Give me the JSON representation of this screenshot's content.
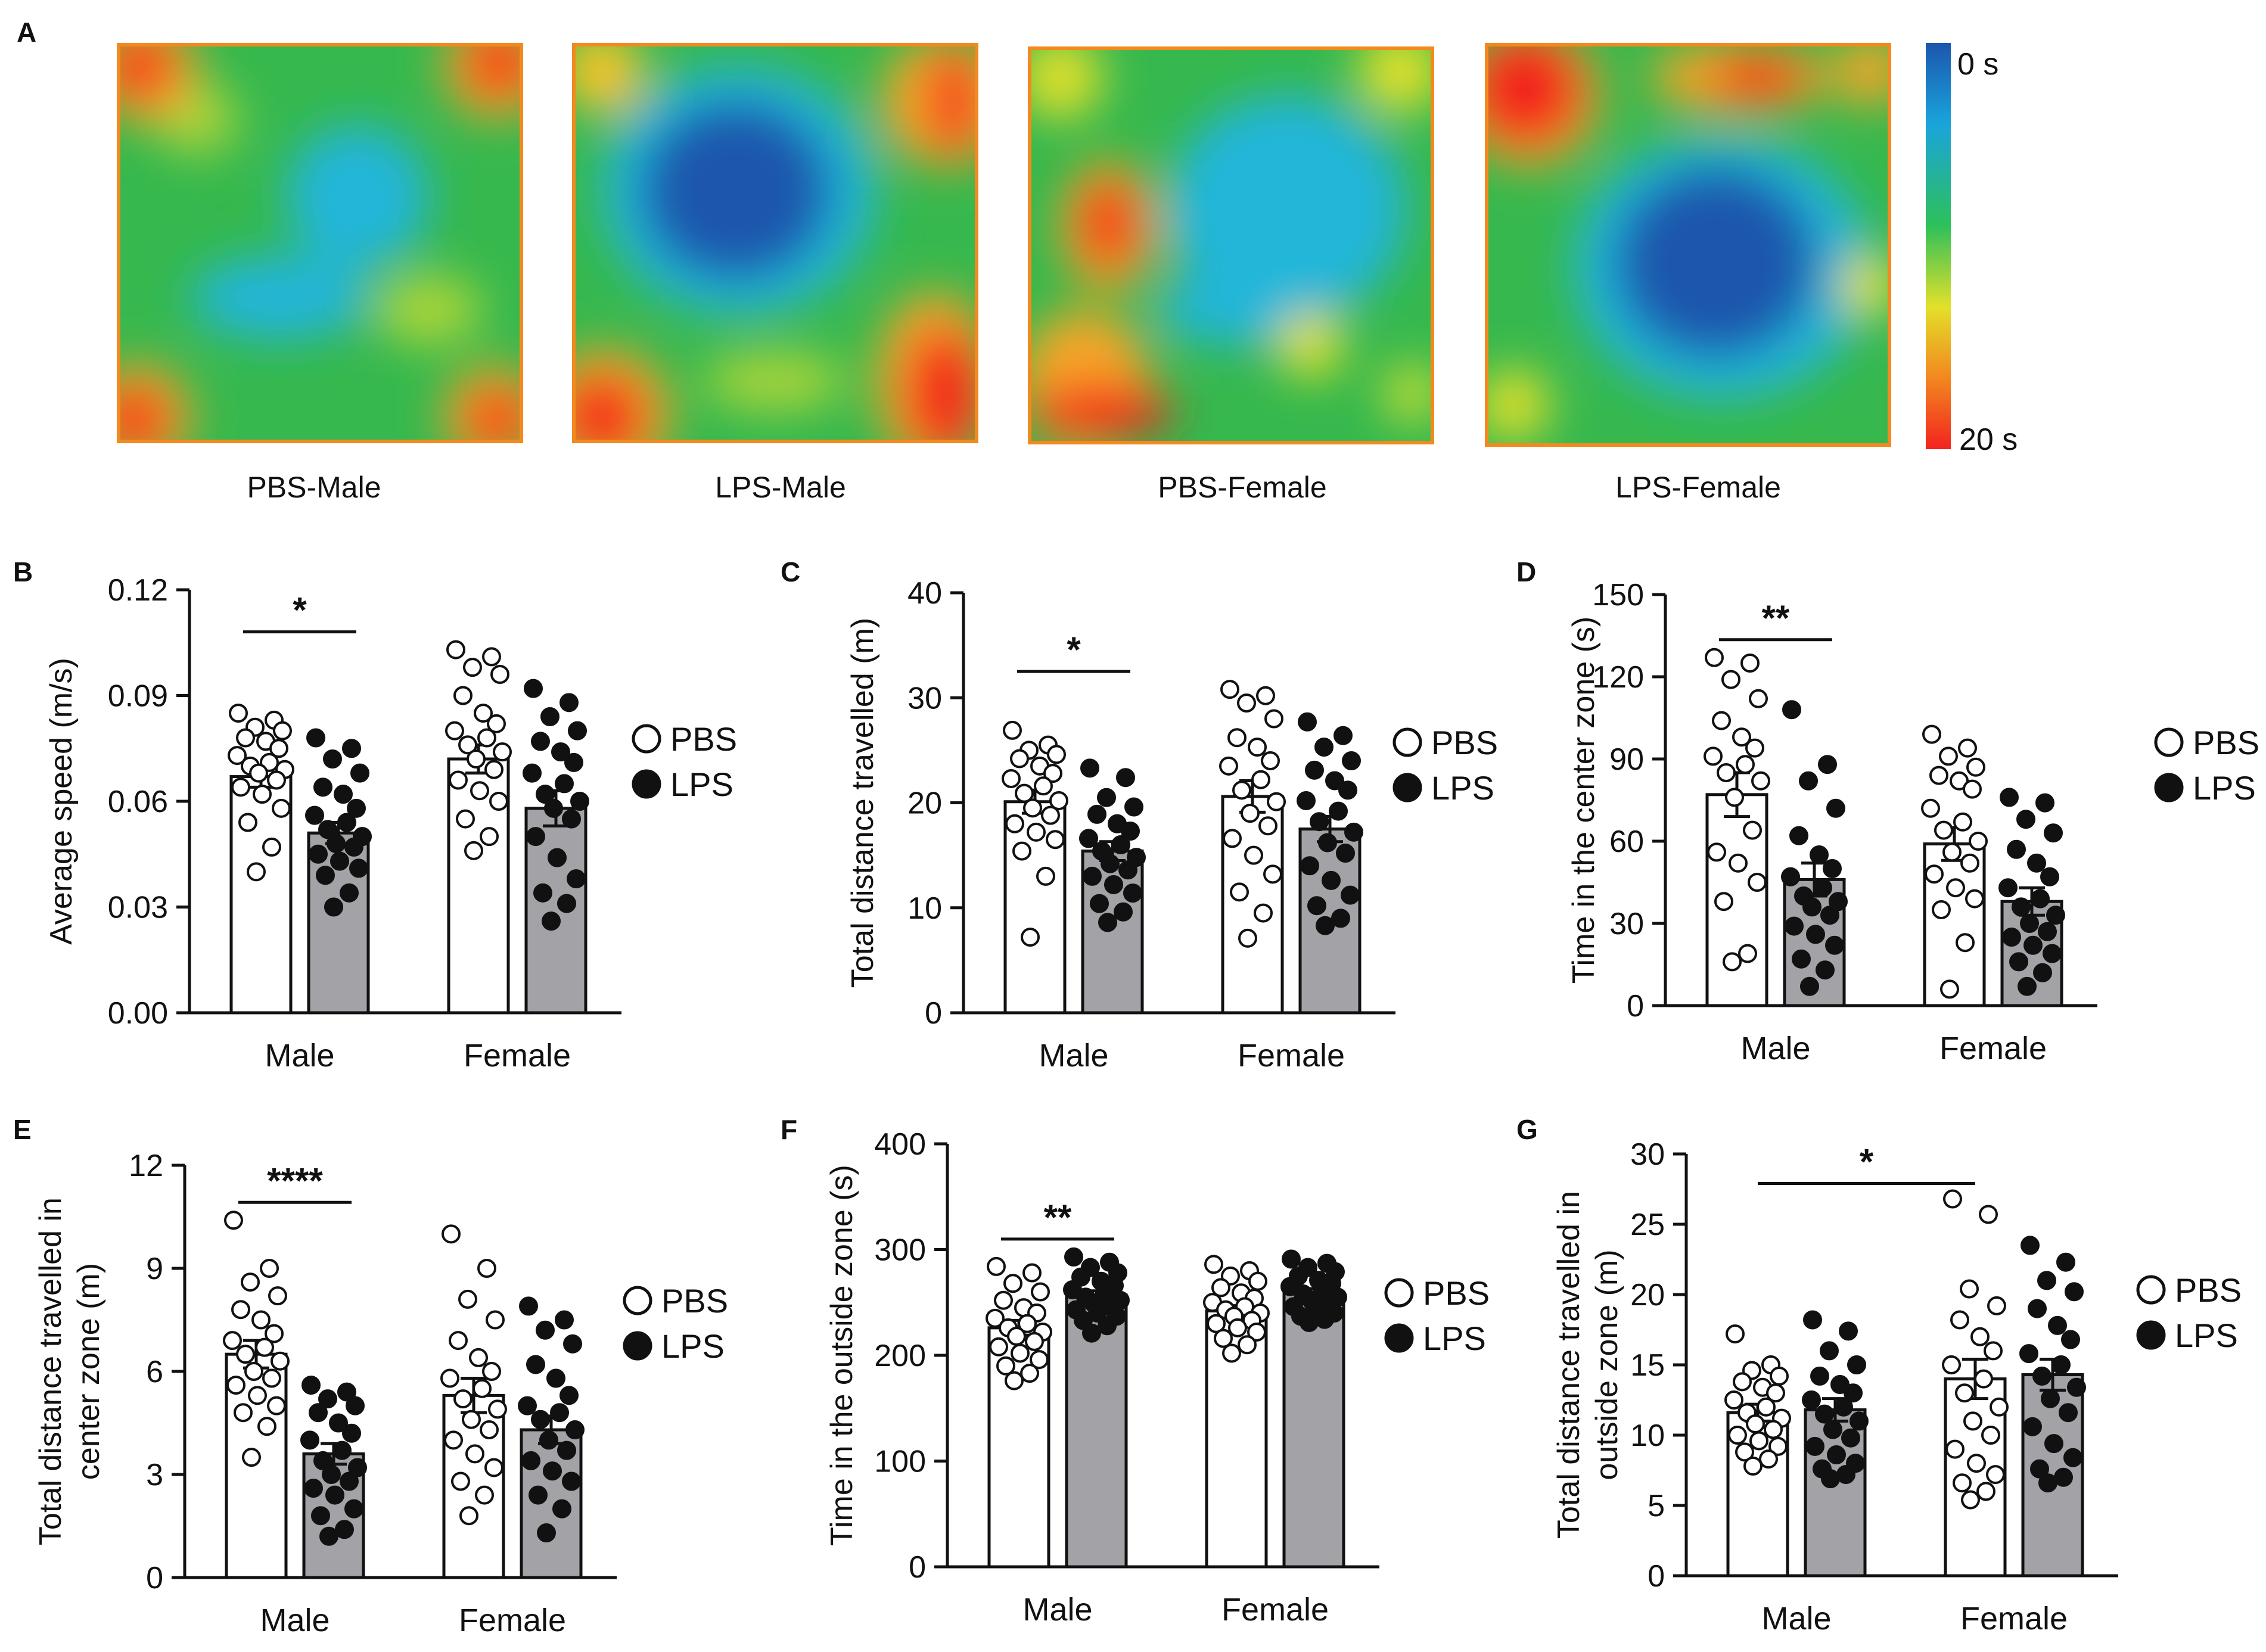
{
  "figure": {
    "colorbar": {
      "top_label": "0 s",
      "bottom_label": "20 s",
      "colors": [
        "#1b56ad",
        "#1aa4dc",
        "#2ec05a",
        "#e3e02a",
        "#f28a1f",
        "#f2231f"
      ]
    },
    "heatmaps": [
      {
        "letter": "A",
        "label": "PBS-Male",
        "pattern": "pbs-male"
      },
      {
        "letter": "",
        "label": "LPS-Male",
        "pattern": "lps-male"
      },
      {
        "letter": "",
        "label": "PBS-Female",
        "pattern": "pbs-female"
      },
      {
        "letter": "",
        "label": "LPS-Female",
        "pattern": "lps-female"
      }
    ],
    "legend": {
      "pbs": "PBS",
      "lps": "LPS"
    },
    "colors": {
      "pbs_fill": "#ffffff",
      "lps_fill": "#a3a2a7",
      "dot_fill": "#111111",
      "axis": "#111111"
    }
  },
  "chart_data": [
    {
      "panel": "B",
      "type": "bar",
      "ylabel": "Average speed (m/s)",
      "ylim": [
        0,
        0.12
      ],
      "yticks": [
        0,
        0.03,
        0.06,
        0.09,
        0.12
      ],
      "ytick_labels": [
        "0.00",
        "0.03",
        "0.06",
        "0.09",
        "0.12"
      ],
      "categories": [
        "Male",
        "Female"
      ],
      "series": [
        {
          "name": "PBS",
          "values": [
            0.067,
            0.072
          ],
          "sem": [
            0.003,
            0.004
          ],
          "points": [
            [
              0.085,
              0.083,
              0.081,
              0.08,
              0.078,
              0.077,
              0.075,
              0.073,
              0.071,
              0.07,
              0.069,
              0.068,
              0.066,
              0.064,
              0.062,
              0.058,
              0.054,
              0.047,
              0.04
            ],
            [
              0.103,
              0.101,
              0.098,
              0.096,
              0.09,
              0.085,
              0.082,
              0.08,
              0.078,
              0.076,
              0.074,
              0.072,
              0.069,
              0.066,
              0.063,
              0.06,
              0.055,
              0.05,
              0.046
            ]
          ]
        },
        {
          "name": "LPS",
          "values": [
            0.051,
            0.058
          ],
          "sem": [
            0.003,
            0.005
          ],
          "points": [
            [
              0.078,
              0.075,
              0.072,
              0.068,
              0.064,
              0.062,
              0.058,
              0.056,
              0.054,
              0.052,
              0.05,
              0.048,
              0.047,
              0.045,
              0.043,
              0.041,
              0.039,
              0.034,
              0.03
            ],
            [
              0.092,
              0.088,
              0.084,
              0.08,
              0.077,
              0.074,
              0.071,
              0.068,
              0.065,
              0.062,
              0.06,
              0.058,
              0.055,
              0.05,
              0.044,
              0.038,
              0.034,
              0.031,
              0.026
            ]
          ]
        }
      ],
      "significance": [
        {
          "label": "*",
          "between": "Male"
        }
      ]
    },
    {
      "panel": "C",
      "type": "bar",
      "ylabel": "Total distance travelled (m)",
      "ylim": [
        0,
        40
      ],
      "yticks": [
        0,
        10,
        20,
        30,
        40
      ],
      "ytick_labels": [
        "0",
        "10",
        "20",
        "30",
        "40"
      ],
      "categories": [
        "Male",
        "Female"
      ],
      "series": [
        {
          "name": "PBS",
          "values": [
            20.1,
            20.6
          ],
          "sem": [
            1.1,
            1.5
          ],
          "points": [
            [
              26.9,
              25.5,
              25.0,
              24.6,
              24.2,
              23.5,
              22.8,
              22.3,
              21.6,
              20.9,
              20.2,
              19.5,
              18.8,
              18.0,
              17.2,
              16.5,
              15.4,
              13.0,
              7.2
            ],
            [
              30.8,
              30.2,
              29.5,
              28.0,
              26.2,
              25.3,
              24.0,
              23.5,
              22.2,
              21.2,
              20.1,
              19.0,
              17.8,
              16.6,
              15.0,
              13.2,
              11.5,
              9.5,
              7.1
            ]
          ]
        },
        {
          "name": "LPS",
          "values": [
            15.4,
            17.5
          ],
          "sem": [
            0.9,
            1.2
          ],
          "points": [
            [
              23.3,
              22.4,
              20.5,
              19.6,
              18.9,
              18.0,
              17.3,
              16.6,
              16.0,
              15.4,
              14.8,
              14.2,
              13.6,
              13.0,
              12.2,
              11.4,
              10.4,
              9.6,
              8.6
            ],
            [
              27.7,
              26.4,
              25.3,
              24.0,
              23.1,
              22.1,
              21.2,
              20.2,
              19.2,
              18.2,
              17.2,
              16.2,
              15.2,
              14.0,
              12.6,
              11.2,
              10.2,
              9.0,
              8.3
            ]
          ]
        }
      ],
      "significance": [
        {
          "label": "*",
          "between": "Male"
        }
      ]
    },
    {
      "panel": "D",
      "type": "bar",
      "ylabel": "Time in the center zone (s)",
      "ylim": [
        0,
        150
      ],
      "yticks": [
        0,
        30,
        60,
        90,
        120,
        150
      ],
      "ytick_labels": [
        "0",
        "30",
        "60",
        "90",
        "120",
        "150"
      ],
      "categories": [
        "Male",
        "Female"
      ],
      "series": [
        {
          "name": "PBS",
          "values": [
            77,
            59
          ],
          "sem": [
            8,
            6
          ],
          "points": [
            [
              127,
              125,
              119,
              112,
              104,
              98,
              94,
              91,
              88,
              85,
              82,
              76,
              64,
              56,
              52,
              45,
              38,
              19,
              16
            ],
            [
              99,
              94,
              91,
              87,
              84,
              82,
              79,
              72,
              67,
              64,
              60,
              56,
              52,
              48,
              43,
              39,
              35,
              23,
              6
            ]
          ]
        },
        {
          "name": "LPS",
          "values": [
            46,
            38
          ],
          "sem": [
            6,
            5
          ],
          "points": [
            [
              108,
              88,
              82,
              72,
              62,
              55,
              50,
              47,
              43,
              40,
              38,
              36,
              33,
              29,
              26,
              22,
              17,
              13,
              7
            ],
            [
              76,
              74,
              68,
              63,
              57,
              52,
              47,
              43,
              39,
              36,
              33,
              30,
              27,
              25,
              22,
              19,
              16,
              12,
              7
            ]
          ]
        }
      ],
      "significance": [
        {
          "label": "**",
          "between": "Male"
        }
      ]
    },
    {
      "panel": "E",
      "type": "bar",
      "ylabel": "Total distance travelled in center zone (m)",
      "ylabel_lines": [
        "Total distance travelled in",
        "center zone (m)"
      ],
      "ylim": [
        0,
        12
      ],
      "yticks": [
        0,
        3,
        6,
        9,
        12
      ],
      "ytick_labels": [
        "0",
        "3",
        "6",
        "9",
        "12"
      ],
      "categories": [
        "Male",
        "Female"
      ],
      "series": [
        {
          "name": "PBS",
          "values": [
            6.5,
            5.3
          ],
          "sem": [
            0.4,
            0.5
          ],
          "points": [
            [
              10.4,
              9.0,
              8.6,
              8.2,
              7.8,
              7.5,
              7.1,
              6.9,
              6.7,
              6.5,
              6.3,
              6.0,
              5.8,
              5.6,
              5.3,
              5.0,
              4.8,
              4.4,
              3.5
            ],
            [
              10.0,
              9.0,
              8.1,
              7.5,
              6.9,
              6.4,
              6.0,
              5.8,
              5.5,
              5.2,
              4.9,
              4.6,
              4.3,
              4.0,
              3.6,
              3.2,
              2.8,
              2.4,
              1.8
            ]
          ]
        },
        {
          "name": "LPS",
          "values": [
            3.6,
            4.3
          ],
          "sem": [
            0.3,
            0.4
          ],
          "points": [
            [
              5.6,
              5.4,
              5.2,
              5.0,
              4.8,
              4.5,
              4.2,
              4.0,
              3.7,
              3.4,
              3.2,
              3.0,
              2.8,
              2.6,
              2.4,
              2.0,
              1.8,
              1.4,
              1.2
            ],
            [
              7.9,
              7.5,
              7.2,
              6.8,
              6.2,
              5.8,
              5.3,
              5.0,
              4.8,
              4.6,
              4.3,
              4.0,
              3.7,
              3.4,
              3.1,
              2.8,
              2.4,
              2.0,
              1.3
            ]
          ]
        }
      ],
      "significance": [
        {
          "label": "****",
          "between": "Male"
        }
      ]
    },
    {
      "panel": "F",
      "type": "bar",
      "ylabel": "Time in the outside zone (s)",
      "ylim": [
        0,
        400
      ],
      "yticks": [
        0,
        100,
        200,
        300,
        400
      ],
      "ytick_labels": [
        "0",
        "100",
        "200",
        "300",
        "400"
      ],
      "categories": [
        "Male",
        "Female"
      ],
      "series": [
        {
          "name": "PBS",
          "values": [
            226,
            242
          ],
          "sem": [
            7,
            5
          ],
          "points": [
            [
              284,
              278,
              268,
              260,
              252,
              245,
              240,
              235,
              230,
              226,
              222,
              218,
              213,
              208,
              202,
              196,
              190,
              183,
              176
            ],
            [
              286,
              280,
              275,
              270,
              264,
              259,
              254,
              250,
              246,
              243,
              240,
              237,
              233,
              230,
              226,
              222,
              216,
              210,
              202
            ]
          ]
        },
        {
          "name": "LPS",
          "values": [
            257,
            259
          ],
          "sem": [
            4,
            4
          ],
          "points": [
            [
              293,
              288,
              283,
              278,
              274,
              270,
              266,
              262,
              258,
              255,
              252,
              249,
              246,
              243,
              240,
              237,
              233,
              228,
              221
            ],
            [
              291,
              287,
              283,
              279,
              275,
              271,
              268,
              265,
              261,
              258,
              255,
              252,
              249,
              246,
              243,
              240,
              237,
              234,
              231
            ]
          ]
        }
      ],
      "significance": [
        {
          "label": "**",
          "between": "Male"
        }
      ]
    },
    {
      "panel": "G",
      "type": "bar",
      "ylabel": "Total distance travelled in outside zone (m)",
      "ylabel_lines": [
        "Total distance travelled in",
        "outside zone (m)"
      ],
      "ylim": [
        0,
        30
      ],
      "yticks": [
        0,
        5,
        10,
        15,
        20,
        25,
        30
      ],
      "ytick_labels": [
        "0",
        "5",
        "10",
        "15",
        "20",
        "25",
        "30"
      ],
      "categories": [
        "Male",
        "Female"
      ],
      "series": [
        {
          "name": "PBS",
          "values": [
            11.6,
            14.0
          ],
          "sem": [
            0.6,
            1.4
          ],
          "points": [
            [
              17.2,
              15.0,
              14.6,
              14.2,
              13.8,
              13.4,
              13.0,
              12.5,
              12.0,
              11.6,
              11.2,
              10.8,
              10.4,
              10.0,
              9.6,
              9.2,
              8.8,
              8.3,
              7.8
            ],
            [
              26.8,
              25.7,
              20.4,
              19.2,
              18.2,
              17.0,
              16.0,
              15.0,
              14.0,
              13.0,
              12.0,
              11.0,
              10.0,
              9.0,
              8.0,
              7.2,
              6.6,
              6.0,
              5.4
            ]
          ]
        },
        {
          "name": "LPS",
          "values": [
            11.8,
            14.3
          ],
          "sem": [
            0.8,
            1.1
          ],
          "points": [
            [
              18.2,
              17.4,
              16.0,
              15.0,
              14.2,
              13.6,
              13.0,
              12.5,
              12.0,
              11.5,
              11.0,
              10.4,
              9.8,
              9.2,
              8.6,
              8.0,
              7.6,
              7.2,
              6.9
            ],
            [
              23.5,
              22.3,
              21.0,
              20.2,
              19.0,
              17.8,
              16.8,
              15.8,
              15.0,
              14.2,
              13.4,
              12.6,
              11.6,
              10.6,
              9.4,
              8.4,
              7.6,
              7.0,
              6.6
            ]
          ]
        }
      ],
      "significance": [
        {
          "label": "*",
          "between": "PBS-Male vs PBS-Female"
        }
      ]
    }
  ]
}
